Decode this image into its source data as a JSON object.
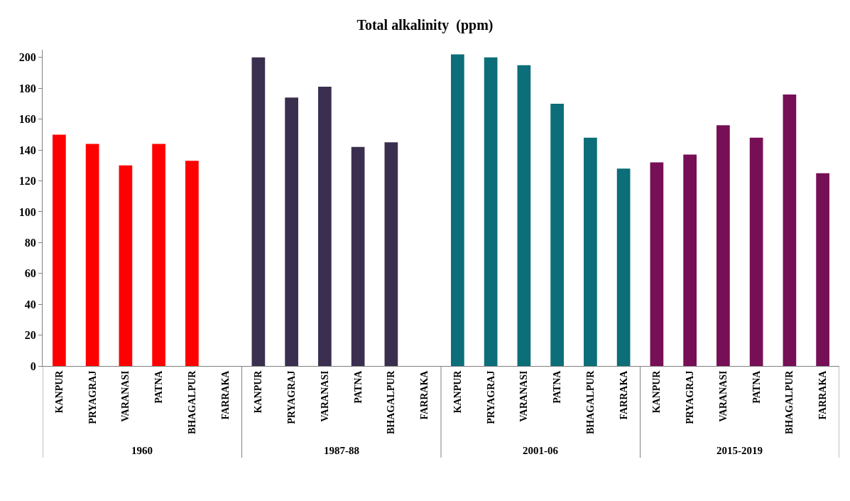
{
  "chart_data": {
    "type": "bar",
    "title": "Total alkalinity  (ppm)",
    "categories": [
      "KANPUR",
      "PRYAGRAJ",
      "VARANASI",
      "PATNA",
      "BHAGALPUR",
      "FARRAKA",
      "KANPUR",
      "PRYAGRAJ",
      "VARANASI",
      "PATNA",
      "BHAGALPUR",
      "FARRAKA",
      "KANPUR",
      "PRYAGRAJ",
      "VARANASI",
      "PATNA",
      "BHAGALPUR",
      "FARRAKA",
      "KANPUR",
      "PRYAGRAJ",
      "VARANASI",
      "PATNA",
      "BHAGALPUR",
      "FARRAKA"
    ],
    "values": [
      150,
      144,
      130,
      144,
      133,
      null,
      200,
      174,
      181,
      142,
      145,
      null,
      202,
      200,
      195,
      170,
      148,
      128,
      132,
      137,
      156,
      148,
      176,
      125
    ],
    "colors": [
      "#ff0000",
      "#ff0000",
      "#ff0000",
      "#ff0000",
      "#ff0000",
      "#ff0000",
      "#3b2f4f",
      "#3b2f4f",
      "#3b2f4f",
      "#3b2f4f",
      "#3b2f4f",
      "#3b2f4f",
      "#0b6e78",
      "#0b6e78",
      "#0b6e78",
      "#0b6e78",
      "#0b6e78",
      "#0b6e78",
      "#760f56",
      "#760f56",
      "#760f56",
      "#760f56",
      "#760f56",
      "#760f56"
    ],
    "annotations": [
      "1960",
      "1987-88",
      "2001-06",
      "2015-2019"
    ],
    "ylim": [
      0,
      205
    ],
    "yticks": [
      0,
      20,
      40,
      60,
      80,
      100,
      120,
      140,
      160,
      180,
      200
    ],
    "grid": false,
    "legend": false
  }
}
